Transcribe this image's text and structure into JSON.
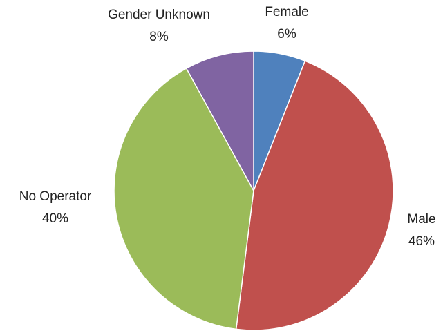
{
  "chart_data": {
    "type": "pie",
    "categories": [
      "Female",
      "Male",
      "No Operator",
      "Gender Unknown"
    ],
    "values": [
      6,
      46,
      40,
      8
    ],
    "value_labels": [
      "6%",
      "46%",
      "40%",
      "8%"
    ],
    "colors": [
      "#4f81bd",
      "#c0504d",
      "#9bbb59",
      "#8064a2"
    ]
  }
}
